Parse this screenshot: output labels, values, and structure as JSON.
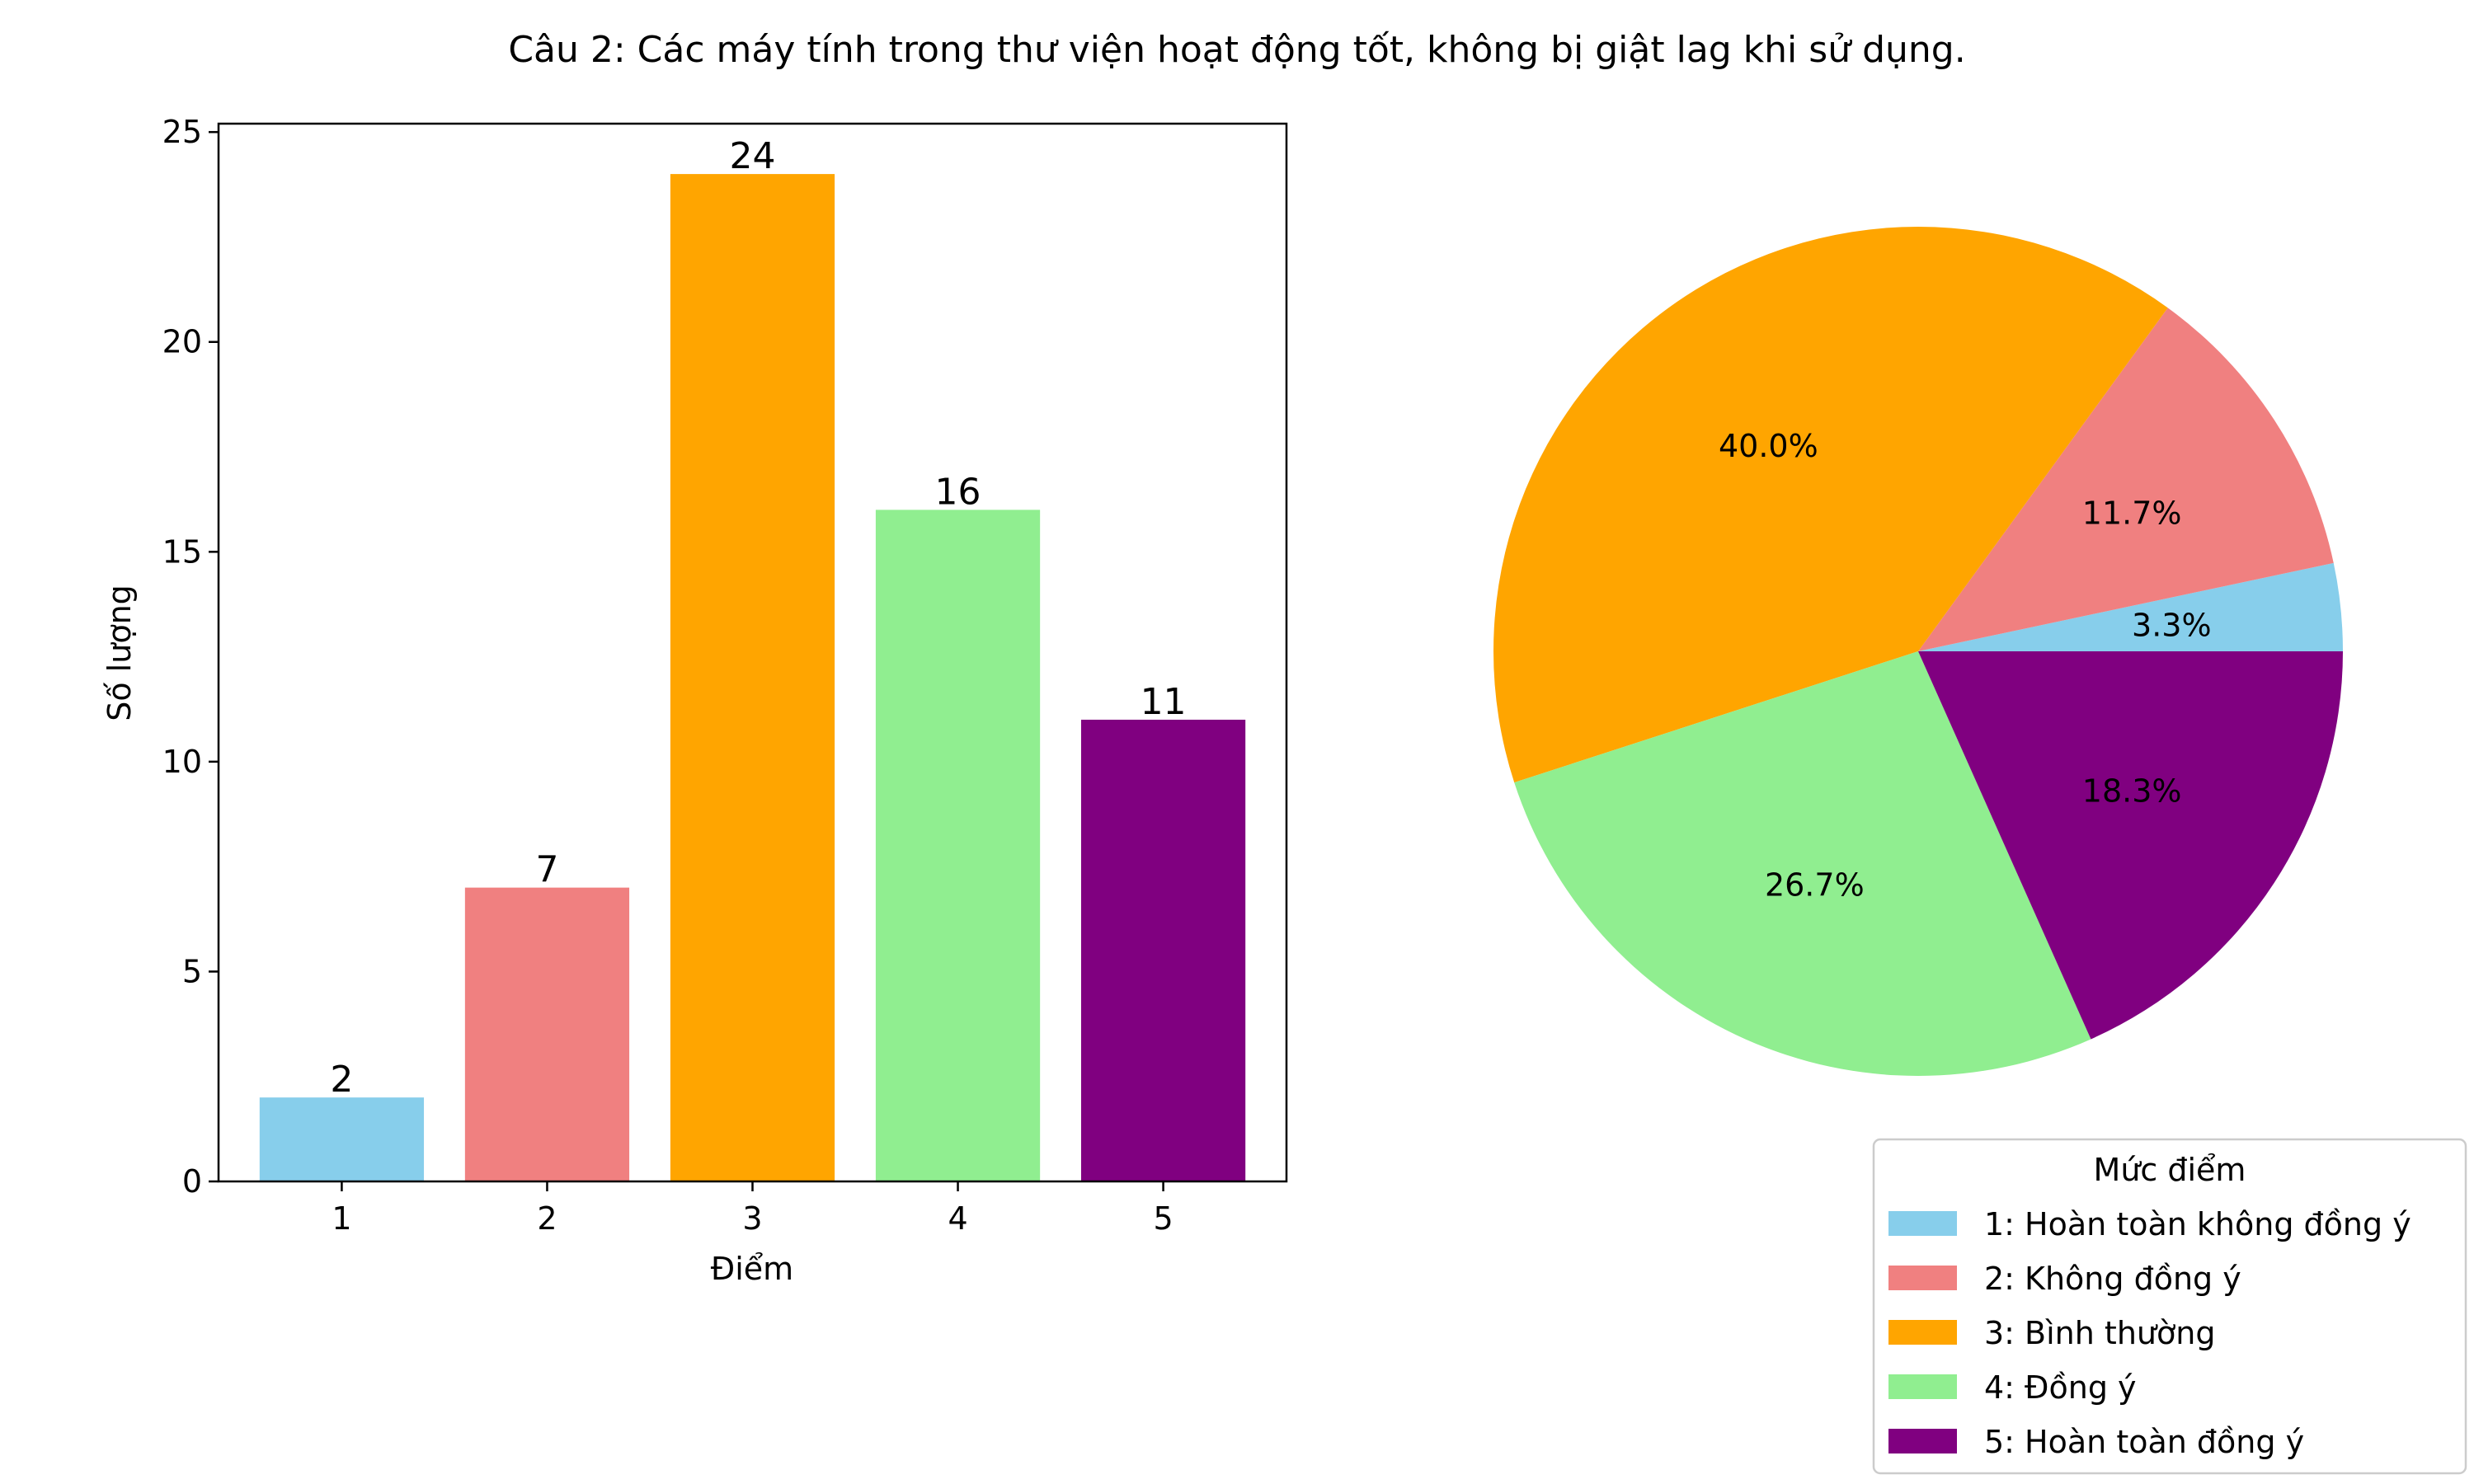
{
  "title": "Câu 2: Các máy tính trong thư viện hoạt động tốt, không bị giật lag khi sử dụng.",
  "chart_data": [
    {
      "type": "bar",
      "categories": [
        "1",
        "2",
        "3",
        "4",
        "5"
      ],
      "values": [
        2,
        7,
        24,
        16,
        11
      ],
      "colors": [
        "#87CEEB",
        "#F08080",
        "#FFA500",
        "#90EE90",
        "#800080"
      ],
      "xlabel": "Điểm",
      "ylabel": "Số lượng",
      "ylim": [
        0,
        25.2
      ],
      "yticks": [
        0,
        5,
        10,
        15,
        20,
        25
      ],
      "data_labels": [
        "2",
        "7",
        "24",
        "16",
        "11"
      ],
      "grid": false
    },
    {
      "type": "pie",
      "labels": [
        "1: Hoàn toàn không đồng ý",
        "2: Không đồng ý",
        "3: Bình thường",
        "4: Đồng ý",
        "5: Hoàn toàn đồng ý"
      ],
      "values": [
        2,
        7,
        24,
        16,
        11
      ],
      "percent_labels": [
        "3.3%",
        "11.7%",
        "40.0%",
        "26.7%",
        "18.3%"
      ],
      "colors": [
        "#87CEEB",
        "#F08080",
        "#FFA500",
        "#90EE90",
        "#800080"
      ],
      "legend_title": "Mức điểm",
      "legend_placement": "lower-right"
    }
  ]
}
